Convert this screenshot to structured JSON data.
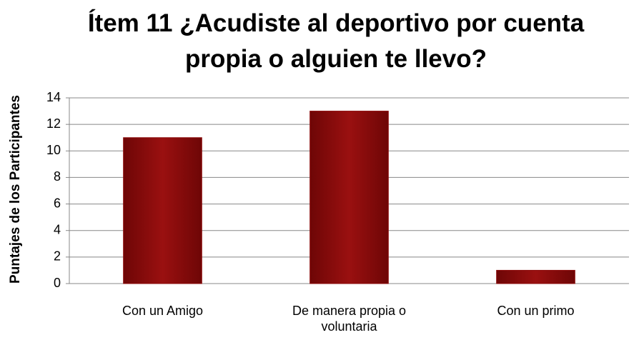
{
  "chart_data": {
    "type": "bar",
    "title": "Ítem 11 ¿Acudiste al deportivo por cuenta propia o alguien te llevo?",
    "y_label": "Puntajes de los Participantes",
    "categories": [
      "Con un Amigo",
      "De manera propia o voluntaria",
      "Con un primo"
    ],
    "values": [
      11,
      13,
      1
    ],
    "color": "#8b0a0a",
    "ylim": [
      0,
      14
    ],
    "yticks": [
      0,
      2,
      4,
      6,
      8,
      10,
      12,
      14
    ],
    "grid": true
  }
}
